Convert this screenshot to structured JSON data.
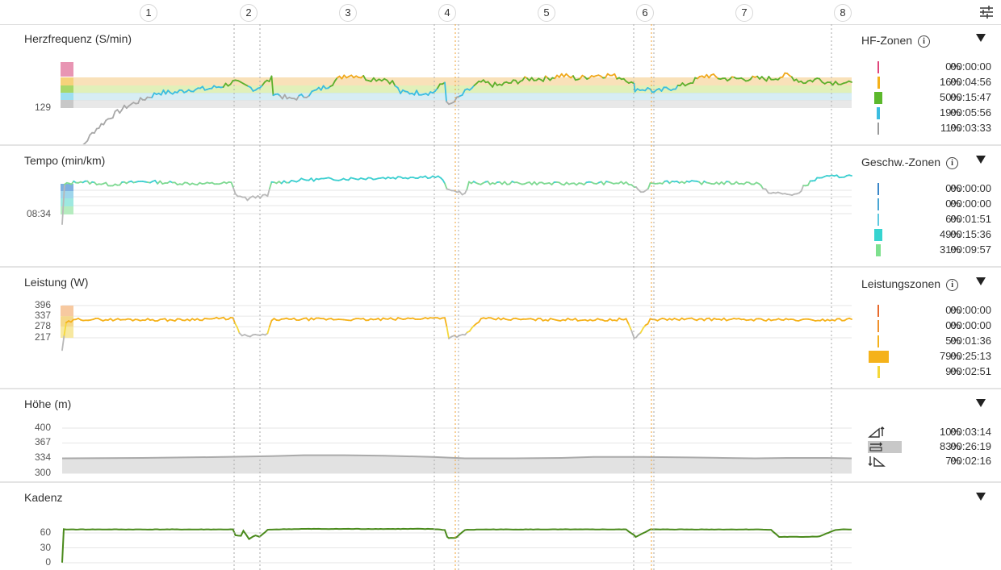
{
  "laps": [
    "1",
    "2",
    "3",
    "4",
    "5",
    "6",
    "7",
    "8"
  ],
  "icons": {
    "settings": "sliders-icon",
    "info": "info-icon",
    "collapse": "triangle-down-icon"
  },
  "panels": {
    "hr": {
      "title": "Herzfrequenz (S/min)",
      "ytick": "129",
      "zone_title": "HF-Zonen",
      "zones": [
        {
          "pct": "0%",
          "time": "00:00:00",
          "color": "#e0457b",
          "fill": 0.0
        },
        {
          "pct": "16%",
          "time": "00:04:56",
          "color": "#f5b21b",
          "fill": 0.16
        },
        {
          "pct": "50%",
          "time": "00:15:47",
          "color": "#5cb82c",
          "fill": 0.5
        },
        {
          "pct": "19%",
          "time": "00:05:56",
          "color": "#3bbde0",
          "fill": 0.19
        },
        {
          "pct": "11%",
          "time": "00:03:33",
          "color": "#9a9a9a",
          "fill": 0.11
        }
      ]
    },
    "pace": {
      "title": "Tempo (min/km)",
      "ytick": "08:34",
      "zone_title": "Geschw.-Zonen",
      "zones": [
        {
          "pct": "0%",
          "time": "00:00:00",
          "color": "#3a86c8",
          "fill": 0.0
        },
        {
          "pct": "0%",
          "time": "00:00:00",
          "color": "#4aa6d4",
          "fill": 0.0
        },
        {
          "pct": "6%",
          "time": "00:01:51",
          "color": "#5ec8e0",
          "fill": 0.06
        },
        {
          "pct": "49%",
          "time": "00:15:36",
          "color": "#36d4d0",
          "fill": 0.49
        },
        {
          "pct": "31%",
          "time": "00:09:57",
          "color": "#7ee08e",
          "fill": 0.31
        }
      ]
    },
    "power": {
      "title": "Leistung (W)",
      "yticks": [
        "396",
        "337",
        "278",
        "217"
      ],
      "zone_title": "Leistungszonen",
      "zones": [
        {
          "pct": "0%",
          "time": "00:00:00",
          "color": "#e86a2c",
          "fill": 0.0
        },
        {
          "pct": "0%",
          "time": "00:00:00",
          "color": "#f0902a",
          "fill": 0.0
        },
        {
          "pct": "5%",
          "time": "00:01:36",
          "color": "#f5b21b",
          "fill": 0.05
        },
        {
          "pct": "79%",
          "time": "00:25:13",
          "color": "#f5b21b",
          "fill": 0.79
        },
        {
          "pct": "9%",
          "time": "00:02:51",
          "color": "#f5d83a",
          "fill": 0.09
        }
      ]
    },
    "elev": {
      "title": "Höhe (m)",
      "yticks": [
        "400",
        "367",
        "334",
        "300"
      ],
      "terrain": [
        {
          "icon": "uphill-icon",
          "pct": "10%",
          "time": "00:03:14",
          "fill": 0.1
        },
        {
          "icon": "flat-icon",
          "pct": "83%",
          "time": "00:26:19",
          "fill": 0.83
        },
        {
          "icon": "downhill-icon",
          "pct": "7%",
          "time": "00:02:16",
          "fill": 0.07
        }
      ]
    },
    "cadence": {
      "title": "Kadenz",
      "yticks": [
        "60",
        "30",
        "0"
      ]
    }
  },
  "chart_data": [
    {
      "type": "line",
      "title": "Herzfrequenz (S/min)",
      "x": [
        0,
        10,
        20,
        40,
        60,
        80,
        100,
        120,
        140,
        160,
        180,
        200,
        212,
        215,
        225,
        240,
        260,
        262,
        282,
        300,
        310,
        330,
        350,
        365,
        380,
        390,
        400,
        410,
        420,
        440,
        460,
        475,
        477,
        480,
        490,
        500,
        520,
        540,
        560,
        580,
        600,
        620,
        640,
        660,
        680,
        700,
        710,
        711,
        730,
        735,
        750,
        770,
        780,
        800,
        820,
        840,
        860,
        880,
        900,
        920,
        940,
        950,
        960,
        970,
        980
      ],
      "values": [
        102,
        108,
        116,
        122,
        126,
        129,
        131,
        133,
        133,
        134,
        134,
        135,
        136,
        136,
        135,
        134,
        137,
        133,
        131,
        132,
        133,
        135,
        138,
        138,
        137,
        137,
        137,
        136,
        133,
        133,
        133,
        136,
        131,
        129,
        131,
        133,
        136,
        135,
        136,
        137,
        137,
        138,
        137,
        138,
        138,
        137,
        135,
        134,
        134,
        133,
        134,
        135,
        136,
        138,
        137,
        137,
        137,
        137,
        138,
        136,
        137,
        136,
        136,
        136,
        136
      ],
      "ytick": 129
    },
    {
      "type": "line",
      "title": "Tempo (min/km)",
      "note": "tempo line roughly flat around 08:34 with slower segments at lap transitions",
      "x": [
        0,
        10,
        20,
        60,
        100,
        140,
        180,
        210,
        215,
        230,
        240,
        255,
        260,
        300,
        340,
        380,
        420,
        460,
        475,
        480,
        490,
        500,
        520,
        560,
        600,
        640,
        680,
        700,
        710,
        715,
        730,
        760,
        800,
        840,
        870,
        880,
        900,
        930,
        950,
        960,
        980
      ],
      "ytick": "08:34"
    },
    {
      "type": "line",
      "title": "Leistung (W)",
      "yticks": [
        396,
        337,
        278,
        217
      ],
      "x": [
        0,
        5,
        20,
        60,
        100,
        140,
        180,
        212,
        220,
        230,
        240,
        255,
        260,
        300,
        340,
        380,
        420,
        460,
        475,
        480,
        490,
        500,
        520,
        560,
        600,
        640,
        680,
        700,
        710,
        715,
        730,
        760,
        800,
        840,
        880,
        920,
        950,
        980
      ],
      "values": [
        150,
        300,
        320,
        318,
        318,
        316,
        322,
        325,
        240,
        225,
        230,
        235,
        318,
        320,
        320,
        318,
        322,
        326,
        330,
        220,
        228,
        230,
        322,
        320,
        318,
        318,
        316,
        322,
        215,
        232,
        318,
        320,
        320,
        318,
        318,
        316,
        316,
        320
      ]
    },
    {
      "type": "area",
      "title": "Höhe (m)",
      "ylim": [
        300,
        400
      ],
      "yticks": [
        400,
        367,
        334,
        300
      ],
      "x": [
        0,
        100,
        200,
        260,
        300,
        350,
        400,
        460,
        500,
        560,
        620,
        660,
        720,
        780,
        820,
        860,
        900,
        950,
        980
      ],
      "values": [
        333,
        334,
        336,
        338,
        340,
        340,
        339,
        336,
        333,
        333,
        334,
        336,
        336,
        335,
        334,
        333,
        334,
        334,
        333
      ]
    },
    {
      "type": "line",
      "title": "Kadenz",
      "ylim": [
        0,
        75
      ],
      "yticks": [
        60,
        30,
        0
      ],
      "x": [
        0,
        2,
        20,
        100,
        200,
        212,
        215,
        222,
        225,
        232,
        240,
        245,
        255,
        260,
        300,
        340,
        380,
        420,
        460,
        475,
        478,
        480,
        488,
        490,
        500,
        520,
        560,
        600,
        640,
        680,
        700,
        710,
        712,
        730,
        740,
        760,
        800,
        840,
        870,
        880,
        890,
        900,
        920,
        940,
        960,
        970,
        980
      ],
      "values": [
        0,
        67,
        67,
        67,
        67,
        67,
        55,
        54,
        64,
        48,
        55,
        52,
        66,
        67,
        68,
        68,
        68,
        68,
        68,
        66,
        52,
        50,
        50,
        52,
        66,
        67,
        67,
        67,
        67,
        67,
        67,
        55,
        52,
        67,
        67,
        67,
        67,
        67,
        67,
        66,
        52,
        52,
        52,
        53,
        66,
        67,
        67
      ]
    }
  ]
}
